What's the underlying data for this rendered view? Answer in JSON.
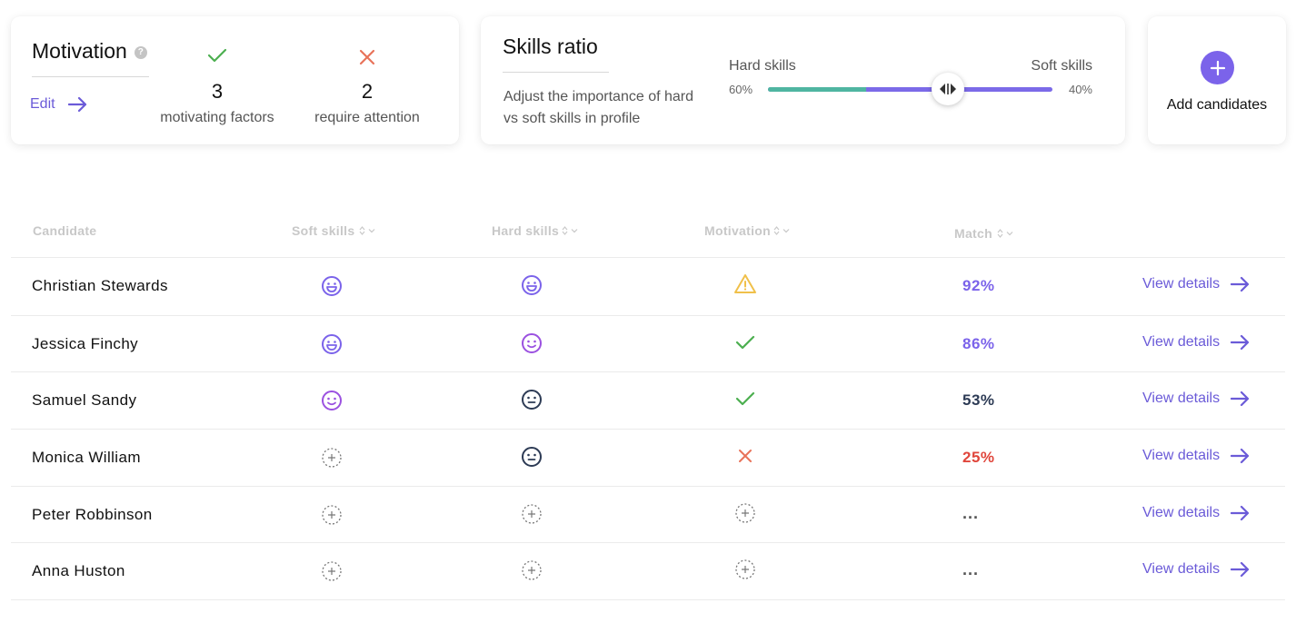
{
  "motivation": {
    "title": "Motivation",
    "help_icon": "question-icon",
    "edit_label": "Edit",
    "stats": [
      {
        "value": "3",
        "label": "motivating factors",
        "icon": "check-icon",
        "color": "#4caf50"
      },
      {
        "value": "2",
        "label": "require attention",
        "icon": "cross-icon",
        "color": "#e8735a"
      }
    ]
  },
  "skills_ratio": {
    "title": "Skills ratio",
    "description": "Adjust the importance of hard vs soft skills in profile",
    "hard_label": "Hard skills",
    "soft_label": "Soft skills",
    "hard_percent": "60%",
    "soft_percent": "40%",
    "hard_value": 0.6,
    "hard_color": "#4fb5a1",
    "soft_color": "#7b6ae8"
  },
  "add_candidates": {
    "label": "Add candidates",
    "icon": "plus-icon",
    "color": "#7b63ea"
  },
  "table": {
    "columns": [
      "Candidate",
      "Soft skills",
      "Hard skills",
      "Motivation",
      "Match"
    ],
    "view_label": "View details",
    "rows": [
      {
        "name": "Christian Stewards",
        "soft": "laughing-face-icon",
        "hard": "laughing-face-icon",
        "motivation": "warning-icon",
        "match": "92%",
        "match_color": "#7b63ea"
      },
      {
        "name": "Jessica Finchy",
        "soft": "laughing-face-icon",
        "hard": "smiling-face-icon",
        "motivation": "check-icon",
        "match": "86%",
        "match_color": "#7b63ea"
      },
      {
        "name": "Samuel Sandy",
        "soft": "smiling-face-icon",
        "hard": "neutral-face-icon",
        "motivation": "check-icon",
        "match": "53%",
        "match_color": "#2d3b55"
      },
      {
        "name": "Monica William",
        "soft": "add-dashed-icon",
        "hard": "neutral-face-icon",
        "motivation": "cross-icon",
        "match": "25%",
        "match_color": "#e0463c"
      },
      {
        "name": "Peter Robbinson",
        "soft": "add-dashed-icon",
        "hard": "add-dashed-icon",
        "motivation": "add-dashed-icon",
        "match": "...",
        "match_color": "#555555"
      },
      {
        "name": "Anna Huston",
        "soft": "add-dashed-icon",
        "hard": "add-dashed-icon",
        "motivation": "add-dashed-icon",
        "match": "...",
        "match_color": "#555555"
      }
    ]
  }
}
